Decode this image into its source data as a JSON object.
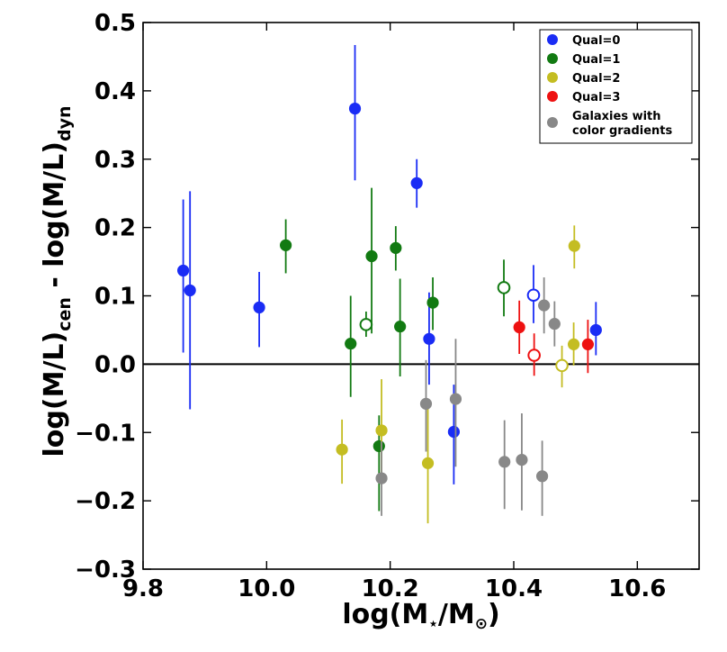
{
  "chart_data": {
    "type": "scatter",
    "xlabel": "log(M⋆/M⊙)",
    "xlabel_parts": {
      "prefix": "log(M",
      "star": "⋆",
      "mid": "/M",
      "sun": "⊙",
      "suffix": ")"
    },
    "ylabel": "log(M/L)cen - log(M/L)dyn",
    "ylabel_parts": {
      "a": "log(M/L)",
      "sub1": "cen",
      "b": " - log(M/L)",
      "sub2": "dyn"
    },
    "xlim": [
      9.8,
      10.7
    ],
    "ylim": [
      -0.3,
      0.5
    ],
    "xticks": [
      9.8,
      10.0,
      10.2,
      10.4,
      10.6
    ],
    "xtick_labels": [
      "9.8",
      "10.0",
      "10.2",
      "10.4",
      "10.6"
    ],
    "yticks": [
      -0.3,
      -0.2,
      -0.1,
      0.0,
      0.1,
      0.2,
      0.3,
      0.4,
      0.5
    ],
    "ytick_labels": [
      "−0.3",
      "−0.2",
      "−0.1",
      "0.0",
      "0.1",
      "0.2",
      "0.3",
      "0.4",
      "0.5"
    ],
    "reference_line_y": 0.0,
    "legend_position": "top-right",
    "series": [
      {
        "name": "Qual=0",
        "color": "#1a2cf5",
        "points": [
          {
            "x": 9.865,
            "y": 0.137,
            "lo": 0.017,
            "hi": 0.241,
            "filled": true
          },
          {
            "x": 9.876,
            "y": 0.108,
            "lo": -0.066,
            "hi": 0.253,
            "filled": true
          },
          {
            "x": 9.988,
            "y": 0.083,
            "lo": 0.025,
            "hi": 0.135,
            "filled": true
          },
          {
            "x": 10.143,
            "y": 0.374,
            "lo": 0.269,
            "hi": 0.467,
            "filled": true
          },
          {
            "x": 10.243,
            "y": 0.265,
            "lo": 0.229,
            "hi": 0.3,
            "filled": true
          },
          {
            "x": 10.263,
            "y": 0.037,
            "lo": -0.03,
            "hi": 0.105,
            "filled": true
          },
          {
            "x": 10.303,
            "y": -0.099,
            "lo": -0.176,
            "hi": -0.03,
            "filled": true
          },
          {
            "x": 10.432,
            "y": 0.101,
            "lo": 0.06,
            "hi": 0.145,
            "filled": false
          },
          {
            "x": 10.533,
            "y": 0.05,
            "lo": 0.013,
            "hi": 0.091,
            "filled": true
          }
        ]
      },
      {
        "name": "Qual=1",
        "color": "#127a12",
        "points": [
          {
            "x": 10.031,
            "y": 0.174,
            "lo": 0.133,
            "hi": 0.212,
            "filled": true
          },
          {
            "x": 10.136,
            "y": 0.03,
            "lo": -0.048,
            "hi": 0.1,
            "filled": true
          },
          {
            "x": 10.161,
            "y": 0.058,
            "lo": 0.04,
            "hi": 0.077,
            "filled": false
          },
          {
            "x": 10.17,
            "y": 0.158,
            "lo": 0.045,
            "hi": 0.258,
            "filled": true
          },
          {
            "x": 10.182,
            "y": -0.12,
            "lo": -0.215,
            "hi": -0.075,
            "filled": true
          },
          {
            "x": 10.209,
            "y": 0.17,
            "lo": 0.137,
            "hi": 0.202,
            "filled": true
          },
          {
            "x": 10.216,
            "y": 0.055,
            "lo": -0.018,
            "hi": 0.125,
            "filled": true
          },
          {
            "x": 10.269,
            "y": 0.09,
            "lo": 0.05,
            "hi": 0.127,
            "filled": true
          },
          {
            "x": 10.384,
            "y": 0.112,
            "lo": 0.07,
            "hi": 0.153,
            "filled": false
          }
        ]
      },
      {
        "name": "Qual=2",
        "color": "#c4bd22",
        "points": [
          {
            "x": 10.122,
            "y": -0.125,
            "lo": -0.175,
            "hi": -0.081,
            "filled": true
          },
          {
            "x": 10.186,
            "y": -0.097,
            "lo": -0.165,
            "hi": -0.022,
            "filled": true
          },
          {
            "x": 10.261,
            "y": -0.145,
            "lo": -0.233,
            "hi": -0.055,
            "filled": true
          },
          {
            "x": 10.478,
            "y": -0.002,
            "lo": -0.034,
            "hi": 0.027,
            "filled": false
          },
          {
            "x": 10.497,
            "y": 0.029,
            "lo": -0.002,
            "hi": 0.061,
            "filled": true
          },
          {
            "x": 10.498,
            "y": 0.173,
            "lo": 0.14,
            "hi": 0.203,
            "filled": true
          }
        ]
      },
      {
        "name": "Qual=3",
        "color": "#ee1111",
        "points": [
          {
            "x": 10.409,
            "y": 0.054,
            "lo": 0.015,
            "hi": 0.093,
            "filled": true
          },
          {
            "x": 10.433,
            "y": 0.013,
            "lo": -0.017,
            "hi": 0.045,
            "filled": false
          },
          {
            "x": 10.52,
            "y": 0.029,
            "lo": -0.013,
            "hi": 0.065,
            "filled": true
          }
        ]
      },
      {
        "name": "Galaxies with color gradients",
        "legend_lines": [
          "Galaxies with",
          "color gradients"
        ],
        "color": "#888888",
        "points": [
          {
            "x": 10.186,
            "y": -0.167,
            "lo": -0.222,
            "hi": -0.113,
            "filled": true
          },
          {
            "x": 10.258,
            "y": -0.058,
            "lo": -0.128,
            "hi": 0.006,
            "filled": true
          },
          {
            "x": 10.306,
            "y": -0.051,
            "lo": -0.15,
            "hi": 0.037,
            "filled": true
          },
          {
            "x": 10.385,
            "y": -0.143,
            "lo": -0.212,
            "hi": -0.082,
            "filled": true
          },
          {
            "x": 10.413,
            "y": -0.14,
            "lo": -0.214,
            "hi": -0.072,
            "filled": true
          },
          {
            "x": 10.446,
            "y": -0.164,
            "lo": -0.222,
            "hi": -0.112,
            "filled": true
          },
          {
            "x": 10.449,
            "y": 0.086,
            "lo": 0.045,
            "hi": 0.127,
            "filled": true
          },
          {
            "x": 10.466,
            "y": 0.059,
            "lo": 0.026,
            "hi": 0.092,
            "filled": true
          }
        ]
      }
    ]
  }
}
